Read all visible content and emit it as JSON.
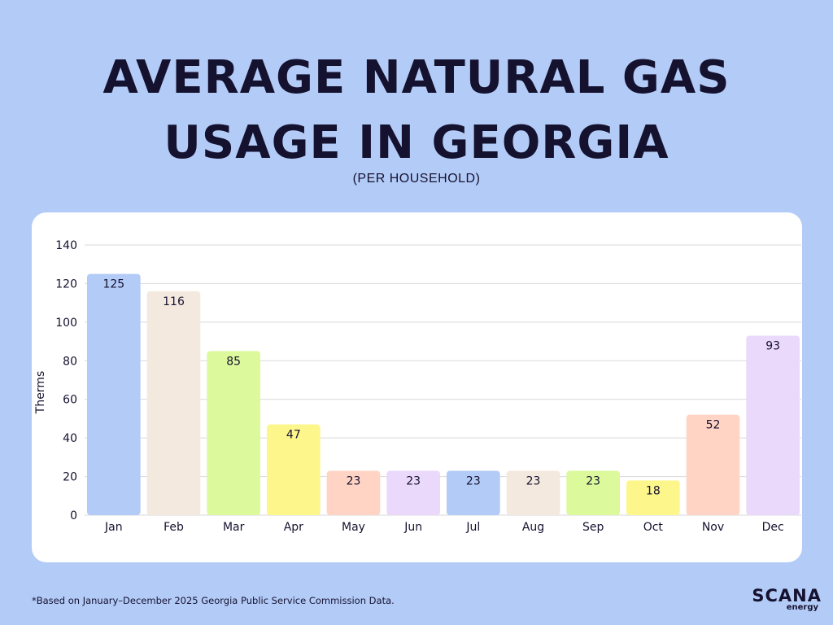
{
  "header": {
    "title_line1": "AVERAGE NATURAL GAS",
    "title_line2": "USAGE IN GEORGIA",
    "subtitle": "(PER HOUSEHOLD)"
  },
  "footer": {
    "footnote": "*Based on January–December 2025 Georgia Public Service Commission Data.",
    "logo_main": "SCANA",
    "logo_sub": "energy"
  },
  "chart_data": {
    "type": "bar",
    "title": "AVERAGE NATURAL GAS USAGE IN GEORGIA",
    "subtitle": "(PER HOUSEHOLD)",
    "xlabel": "",
    "ylabel": "Therms",
    "ylim": [
      0,
      140
    ],
    "yticks": [
      0,
      20,
      40,
      60,
      80,
      100,
      120,
      140
    ],
    "grid": true,
    "categories": [
      "Jan",
      "Feb",
      "Mar",
      "Apr",
      "May",
      "Jun",
      "Jul",
      "Aug",
      "Sep",
      "Oct",
      "Nov",
      "Dec"
    ],
    "values": [
      125,
      116,
      85,
      47,
      23,
      23,
      23,
      23,
      23,
      18,
      52,
      93
    ],
    "data_labels": [
      "125",
      "116",
      "85",
      "47",
      "23",
      "23",
      "23",
      "23",
      "23",
      "18",
      "52",
      "93"
    ],
    "colors": [
      "#b3cbf7",
      "#f3e9df",
      "#dcfa9b",
      "#fdf68b",
      "#ffd4c4",
      "#ead9fb",
      "#b3cbf7",
      "#f3e9df",
      "#dcfa9b",
      "#fdf68b",
      "#ffd4c4",
      "#ead9fb"
    ]
  }
}
